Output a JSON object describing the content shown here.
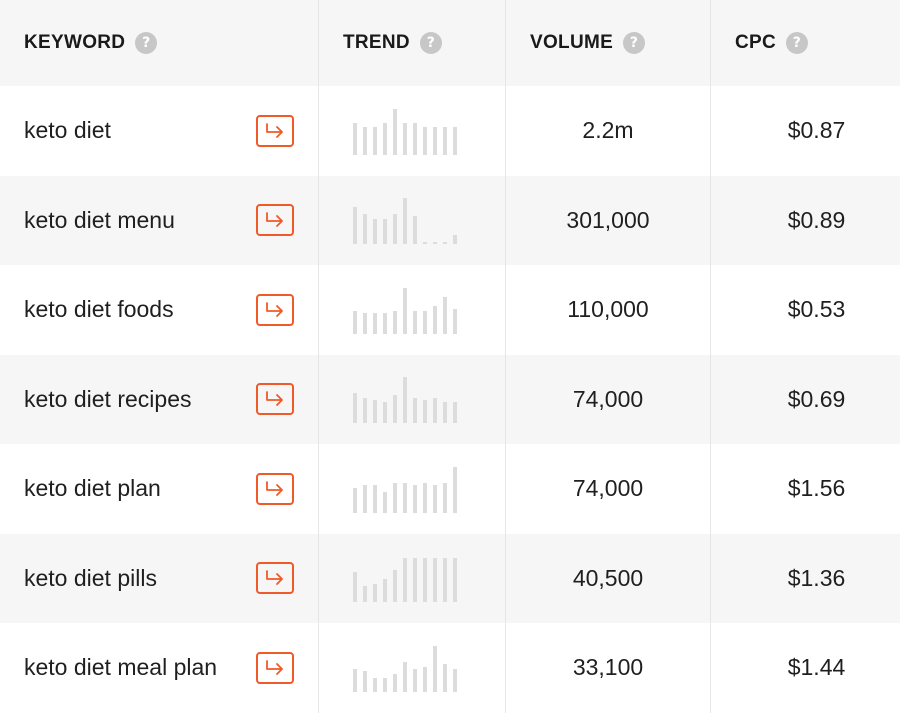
{
  "headers": {
    "keyword": "KEYWORD",
    "trend": "TREND",
    "volume": "VOLUME",
    "cpc": "CPC",
    "help_glyph": "?"
  },
  "accent_color": "#f05a28",
  "trend_bar_color": "#dcdcdc",
  "rows": [
    {
      "keyword": "keto diet",
      "volume": "2.2m",
      "cpc": "$0.87",
      "trend": [
        0.7,
        0.6,
        0.6,
        0.7,
        1.0,
        0.7,
        0.7,
        0.6,
        0.6,
        0.6,
        0.6
      ]
    },
    {
      "keyword": "keto diet menu",
      "volume": "301,000",
      "cpc": "$0.89",
      "trend": [
        0.8,
        0.65,
        0.55,
        0.55,
        0.65,
        1.0,
        0.6,
        0.05,
        0.05,
        0.05,
        0.2
      ]
    },
    {
      "keyword": "keto diet foods",
      "volume": "110,000",
      "cpc": "$0.53",
      "trend": [
        0.5,
        0.45,
        0.45,
        0.45,
        0.5,
        1.0,
        0.5,
        0.5,
        0.6,
        0.8,
        0.55
      ]
    },
    {
      "keyword": "keto diet recipes",
      "volume": "74,000",
      "cpc": "$0.69",
      "trend": [
        0.65,
        0.55,
        0.5,
        0.45,
        0.6,
        1.0,
        0.55,
        0.5,
        0.55,
        0.45,
        0.45
      ]
    },
    {
      "keyword": "keto diet plan",
      "volume": "74,000",
      "cpc": "$1.56",
      "trend": [
        0.55,
        0.6,
        0.6,
        0.45,
        0.65,
        0.65,
        0.6,
        0.65,
        0.6,
        0.65,
        1.0
      ]
    },
    {
      "keyword": "keto diet pills",
      "volume": "40,500",
      "cpc": "$1.36",
      "trend": [
        0.65,
        0.35,
        0.4,
        0.5,
        0.7,
        0.95,
        0.95,
        0.95,
        0.95,
        0.95,
        0.95
      ]
    },
    {
      "keyword": "keto diet meal plan",
      "volume": "33,100",
      "cpc": "$1.44",
      "trend": [
        0.5,
        0.45,
        0.3,
        0.3,
        0.4,
        0.65,
        0.5,
        0.55,
        1.0,
        0.6,
        0.5
      ]
    }
  ]
}
